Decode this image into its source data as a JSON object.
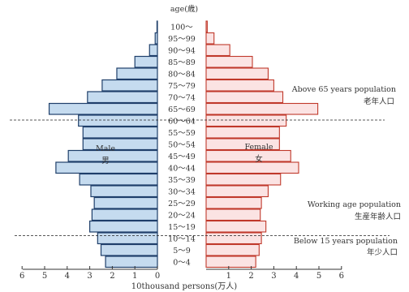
{
  "chart_data": {
    "type": "bar",
    "title": "age(歳)",
    "xlabel": "10thousand persons(万人)",
    "ylabel": "",
    "categories": [
      "0〜4",
      "5〜9",
      "10〜14",
      "15〜19",
      "20〜24",
      "25〜29",
      "30〜34",
      "35〜39",
      "40〜44",
      "45〜49",
      "50〜54",
      "55〜59",
      "60〜64",
      "65〜69",
      "70〜74",
      "75〜79",
      "80〜84",
      "85〜89",
      "90〜94",
      "95〜99",
      "100〜"
    ],
    "xlim": [
      0,
      6
    ],
    "x_ticks": [
      "6",
      "5",
      "4",
      "3",
      "2",
      "1",
      "0",
      "1",
      "2",
      "3",
      "4",
      "5",
      "6"
    ],
    "series": [
      {
        "name": "Male 男",
        "name_en": "Male",
        "name_ja": "男",
        "side": "left",
        "color": "#c5dbef",
        "edge": "#1f3f6a",
        "values": [
          2.3,
          2.5,
          2.65,
          3.0,
          2.9,
          2.8,
          2.95,
          3.45,
          4.5,
          3.95,
          3.3,
          3.3,
          3.5,
          4.8,
          3.1,
          2.45,
          1.8,
          1.0,
          0.35,
          0.1,
          0.02
        ]
      },
      {
        "name": "Female 女",
        "name_en": "Female",
        "name_ja": "女",
        "side": "right",
        "color": "#fbe3e3",
        "edge": "#c0392b",
        "values": [
          2.2,
          2.35,
          2.45,
          2.65,
          2.4,
          2.45,
          2.75,
          3.3,
          4.1,
          3.75,
          3.25,
          3.25,
          3.55,
          4.95,
          3.4,
          3.0,
          2.75,
          2.05,
          1.05,
          0.35,
          0.05
        ]
      }
    ],
    "annotations": [
      {
        "en": "Above 65 years population",
        "ja": "老年人口"
      },
      {
        "en": "Working age population",
        "ja": "生産年齢人口"
      },
      {
        "en": "Below 15 years population",
        "ja": "年少人口"
      }
    ],
    "grid": false,
    "legend": "inside bars"
  }
}
